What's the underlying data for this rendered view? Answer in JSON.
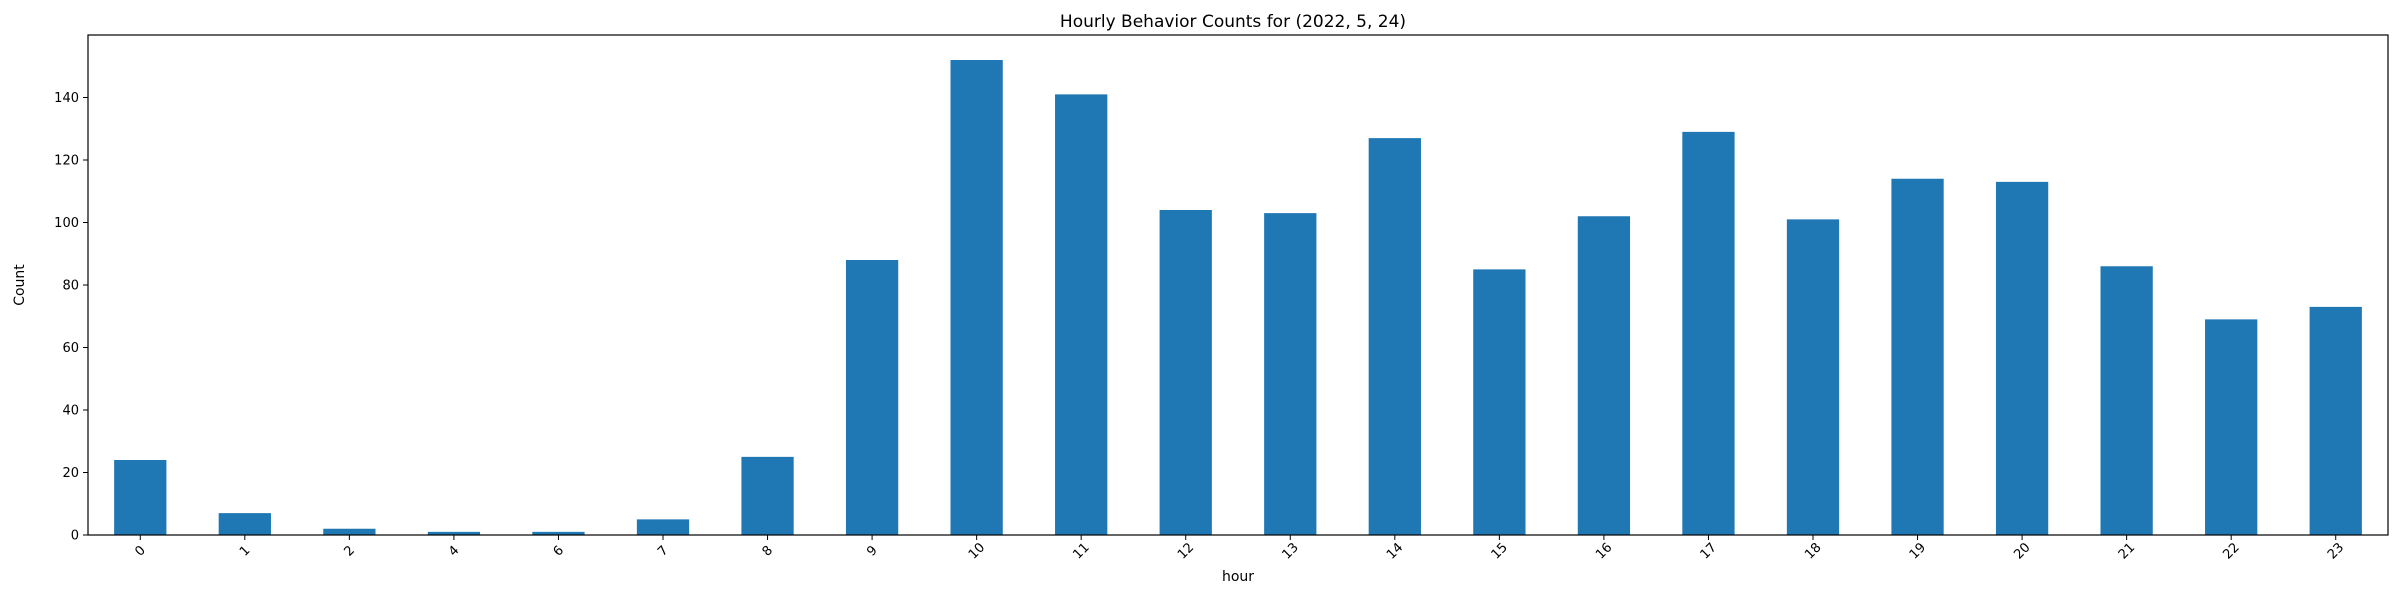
{
  "chart_data": {
    "type": "bar",
    "title": "Hourly Behavior Counts for (2022, 5, 24)",
    "xlabel": "hour",
    "ylabel": "Count",
    "categories": [
      "0",
      "1",
      "2",
      "4",
      "6",
      "7",
      "8",
      "9",
      "10",
      "11",
      "12",
      "13",
      "14",
      "15",
      "16",
      "17",
      "18",
      "19",
      "20",
      "21",
      "22",
      "23"
    ],
    "values": [
      24,
      7,
      2,
      1,
      1,
      5,
      25,
      88,
      152,
      141,
      104,
      103,
      127,
      85,
      102,
      129,
      101,
      114,
      113,
      86,
      69,
      73
    ],
    "ylim": [
      0,
      160
    ],
    "yticks": [
      0,
      20,
      40,
      60,
      80,
      100,
      120,
      140
    ],
    "grid": false,
    "bar_color": "#1f77b4"
  }
}
